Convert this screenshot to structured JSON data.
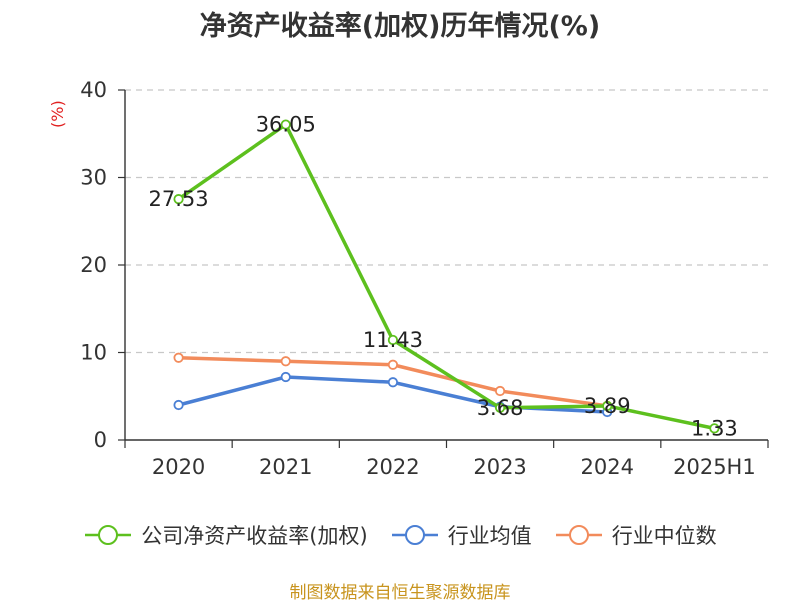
{
  "chart_data": {
    "type": "line",
    "title": "净资产收益率(加权)历年情况(%)",
    "ylabel": "(%)",
    "ylim": [
      0,
      40
    ],
    "yticks": [
      0,
      10,
      20,
      30,
      40
    ],
    "categories": [
      "2020",
      "2021",
      "2022",
      "2023",
      "2024",
      "2025H1"
    ],
    "grid": true,
    "legend_position": "bottom",
    "series": [
      {
        "name": "公司净资产收益率(加权)",
        "color": "#5dc01e",
        "values": [
          27.53,
          36.05,
          11.43,
          3.68,
          3.89,
          1.33
        ],
        "labels": [
          "27.53",
          "36.05",
          "11.43",
          "3.68",
          "3.89",
          "1.33"
        ]
      },
      {
        "name": "行业均值",
        "color": "#4a7fd4",
        "values": [
          4.0,
          7.2,
          6.6,
          3.8,
          3.2,
          null
        ]
      },
      {
        "name": "行业中位数",
        "color": "#f28b5b",
        "values": [
          9.4,
          9.0,
          8.6,
          5.6,
          3.9,
          null
        ]
      }
    ]
  },
  "source": "制图数据来自恒生聚源数据库"
}
